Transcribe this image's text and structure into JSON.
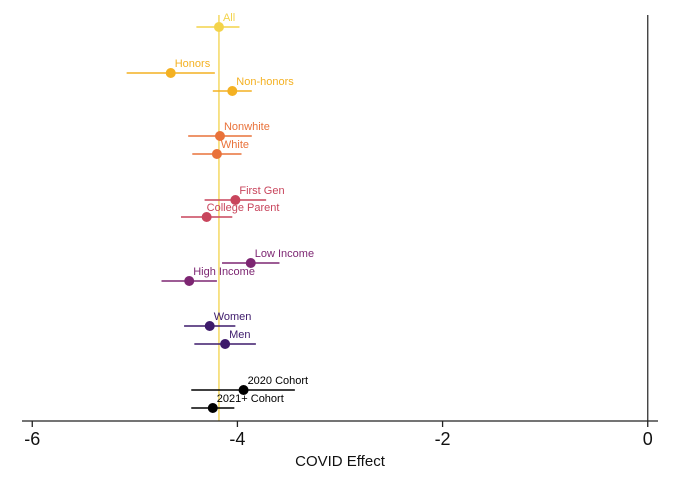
{
  "chart_data": {
    "type": "scatter",
    "title": "",
    "xlabel": "COVID Effect",
    "ylabel": "",
    "xlim": [
      -6.1,
      0.1
    ],
    "xticks": [
      -6,
      -4,
      -2,
      0
    ],
    "xtick_labels": [
      "-6",
      "-4",
      "-2",
      "0"
    ],
    "reference_lines": [
      {
        "name": "overall-estimate",
        "x": -4.18,
        "color": "#f3d34a"
      },
      {
        "name": "zero",
        "x": 0,
        "color": "#333333"
      }
    ],
    "series": [
      {
        "name": "All",
        "estimate": -4.18,
        "ci_low": -4.4,
        "ci_high": -3.98,
        "color": "#f3d34a"
      },
      {
        "name": "Honors",
        "estimate": -4.65,
        "ci_low": -5.08,
        "ci_high": -4.22,
        "color": "#f4b122"
      },
      {
        "name": "Non-honors",
        "estimate": -4.05,
        "ci_low": -4.24,
        "ci_high": -3.86,
        "color": "#f4b122"
      },
      {
        "name": "Nonwhite",
        "estimate": -4.17,
        "ci_low": -4.48,
        "ci_high": -3.86,
        "color": "#e9723a"
      },
      {
        "name": "White",
        "estimate": -4.2,
        "ci_low": -4.44,
        "ci_high": -3.96,
        "color": "#e9723a"
      },
      {
        "name": "First Gen",
        "estimate": -4.02,
        "ci_low": -4.32,
        "ci_high": -3.72,
        "color": "#c8455c"
      },
      {
        "name": "College Parent",
        "estimate": -4.3,
        "ci_low": -4.55,
        "ci_high": -4.05,
        "color": "#c8455c"
      },
      {
        "name": "Low Income",
        "estimate": -3.87,
        "ci_low": -4.15,
        "ci_high": -3.59,
        "color": "#7d2672"
      },
      {
        "name": "High Income",
        "estimate": -4.47,
        "ci_low": -4.74,
        "ci_high": -4.2,
        "color": "#7d2672"
      },
      {
        "name": "Women",
        "estimate": -4.27,
        "ci_low": -4.52,
        "ci_high": -4.02,
        "color": "#3d1a6b"
      },
      {
        "name": "Men",
        "estimate": -4.12,
        "ci_low": -4.42,
        "ci_high": -3.82,
        "color": "#3d1a6b"
      },
      {
        "name": "2020 Cohort",
        "estimate": -3.94,
        "ci_low": -4.45,
        "ci_high": -3.44,
        "color": "#000000"
      },
      {
        "name": "2021+ Cohort",
        "estimate": -4.24,
        "ci_low": -4.45,
        "ci_high": -4.03,
        "color": "#000000"
      }
    ]
  }
}
